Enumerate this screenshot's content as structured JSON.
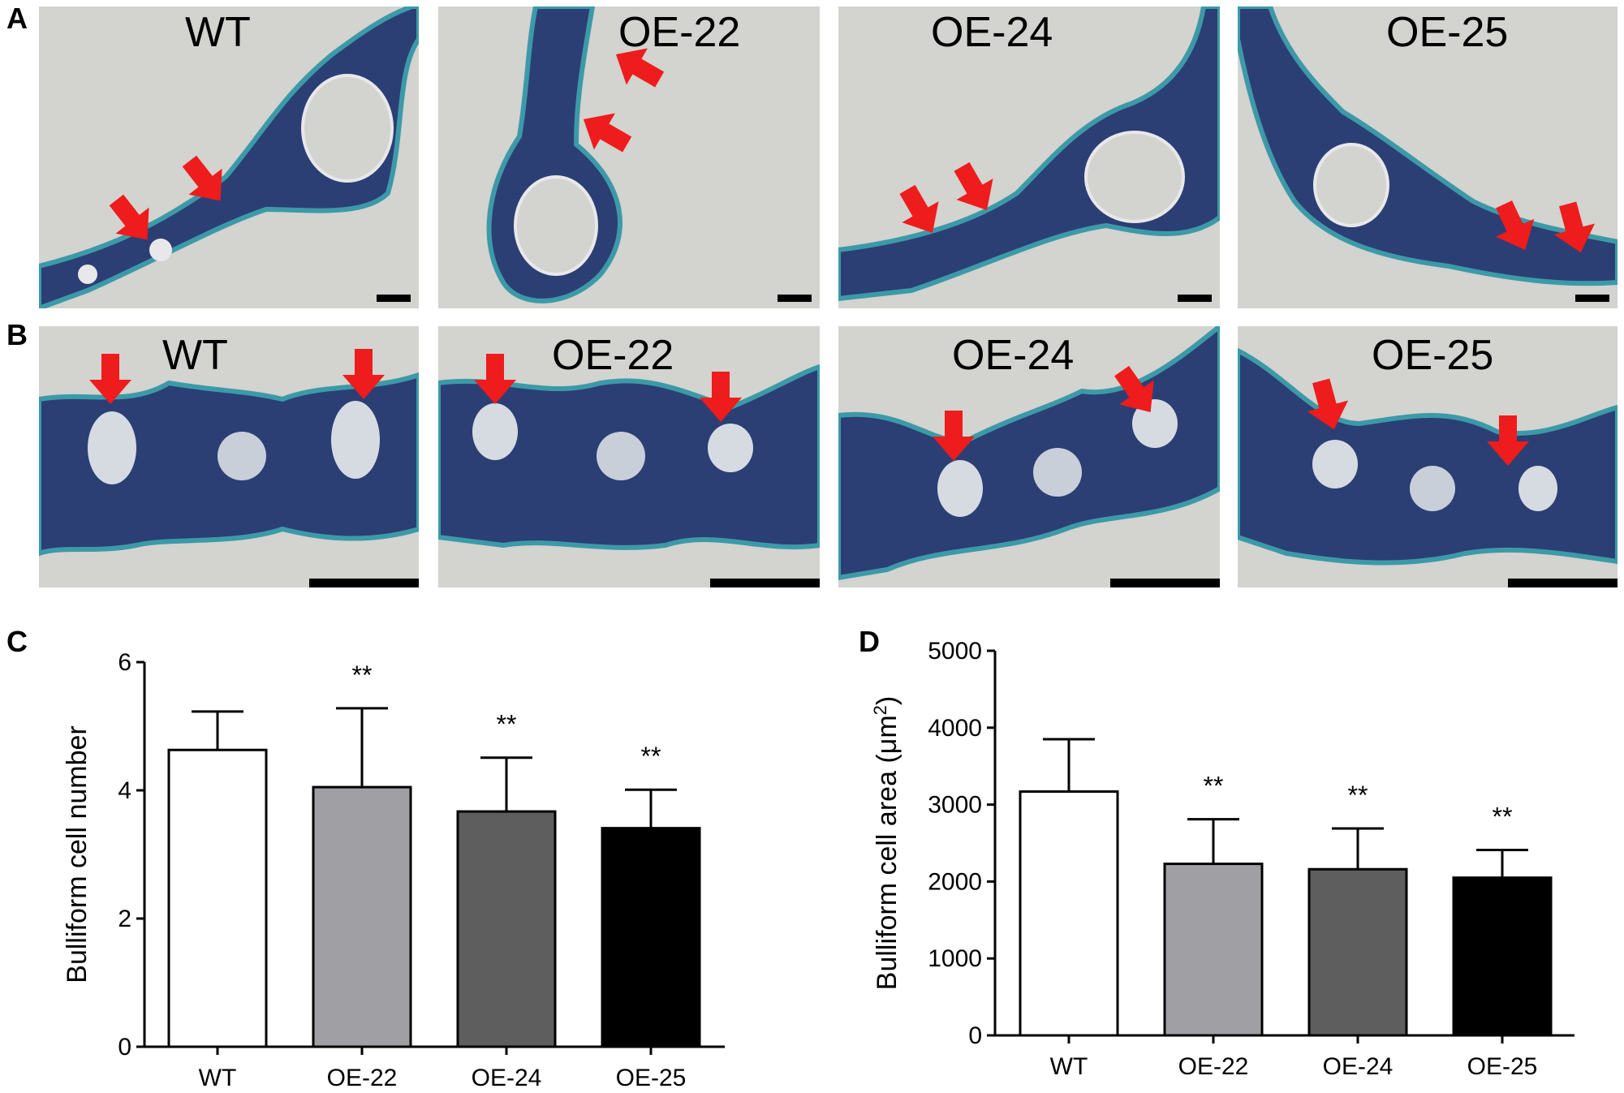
{
  "panel_letters": [
    "A",
    "B",
    "C",
    "D"
  ],
  "micrograph_rows": [
    {
      "row": "A",
      "labels": [
        "WT",
        "OE-22",
        "OE-24",
        "OE-25"
      ]
    },
    {
      "row": "B",
      "labels": [
        "WT",
        "OE-22",
        "OE-24",
        "OE-25"
      ]
    }
  ],
  "colors": {
    "tissue": "#2b3f74",
    "stain": "#3c9aa8",
    "background": "#d3d3cf",
    "arrow": "#ee1c1c",
    "bars": [
      "#ffffff",
      "#a0a0a4",
      "#5e5e5e",
      "#000000"
    ]
  },
  "chart_data": [
    {
      "type": "bar",
      "panel": "C",
      "categories": [
        "WT",
        "OE-22",
        "OE-24",
        "OE-25"
      ],
      "values": [
        4.63,
        4.05,
        3.67,
        3.41
      ],
      "errors": [
        0.6,
        1.23,
        0.84,
        0.6
      ],
      "significance": [
        "",
        "**",
        "**",
        "**"
      ],
      "ylabel": "Bulliform cell number",
      "ylabel_sup": "",
      "ylabel_end": "",
      "ylim": [
        0,
        6
      ],
      "yticks": [
        "0",
        "2",
        "4",
        "6"
      ],
      "tick_values": [
        0,
        2,
        4,
        6
      ]
    },
    {
      "type": "bar",
      "panel": "D",
      "categories": [
        "WT",
        "OE-22",
        "OE-24",
        "OE-25"
      ],
      "values": [
        3170,
        2230,
        2160,
        2050
      ],
      "errors": [
        680,
        580,
        530,
        360
      ],
      "significance": [
        "",
        "**",
        "**",
        "**"
      ],
      "ylabel": "Bulliform cell area (μm",
      "ylabel_sup": "2",
      "ylabel_end": ")",
      "ylim": [
        0,
        5000
      ],
      "yticks": [
        "0",
        "1000",
        "2000",
        "3000",
        "4000",
        "5000"
      ],
      "tick_values": [
        0,
        1000,
        2000,
        3000,
        4000,
        5000
      ]
    }
  ]
}
